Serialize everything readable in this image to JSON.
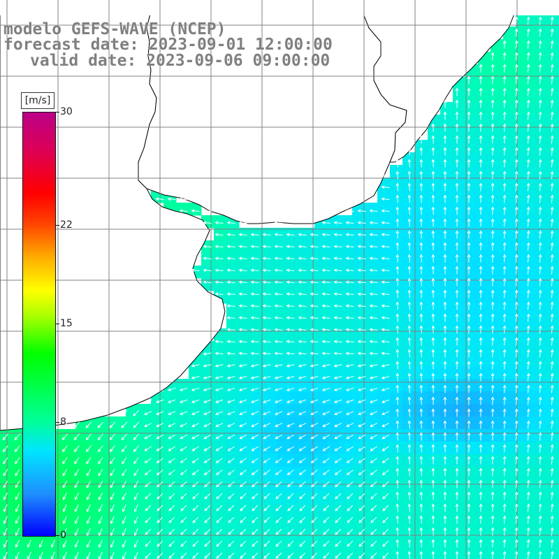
{
  "title": {
    "line1": "modelo GEFS-WAVE (NCEP)",
    "line2": "forecast date: 2023-09-01 12:00:00",
    "line3": "valid date: 2023-09-06 09:00:00"
  },
  "colorbar": {
    "unit": "[m/s]",
    "ticks": [
      {
        "value": 30,
        "label": "30"
      },
      {
        "value": 22,
        "label": "22"
      },
      {
        "value": 15,
        "label": "15"
      },
      {
        "value": 8,
        "label": "8"
      },
      {
        "value": 0,
        "label": "0"
      }
    ],
    "range": [
      0,
      30
    ]
  },
  "map": {
    "field": "wind speed and direction",
    "region": "Rio de la Plata / Uruguay / southern Brazil coast",
    "colors": {
      "land": "#ffffff",
      "grid": "#808080",
      "coast": "#000000",
      "arrows": "#ffffff"
    }
  }
}
